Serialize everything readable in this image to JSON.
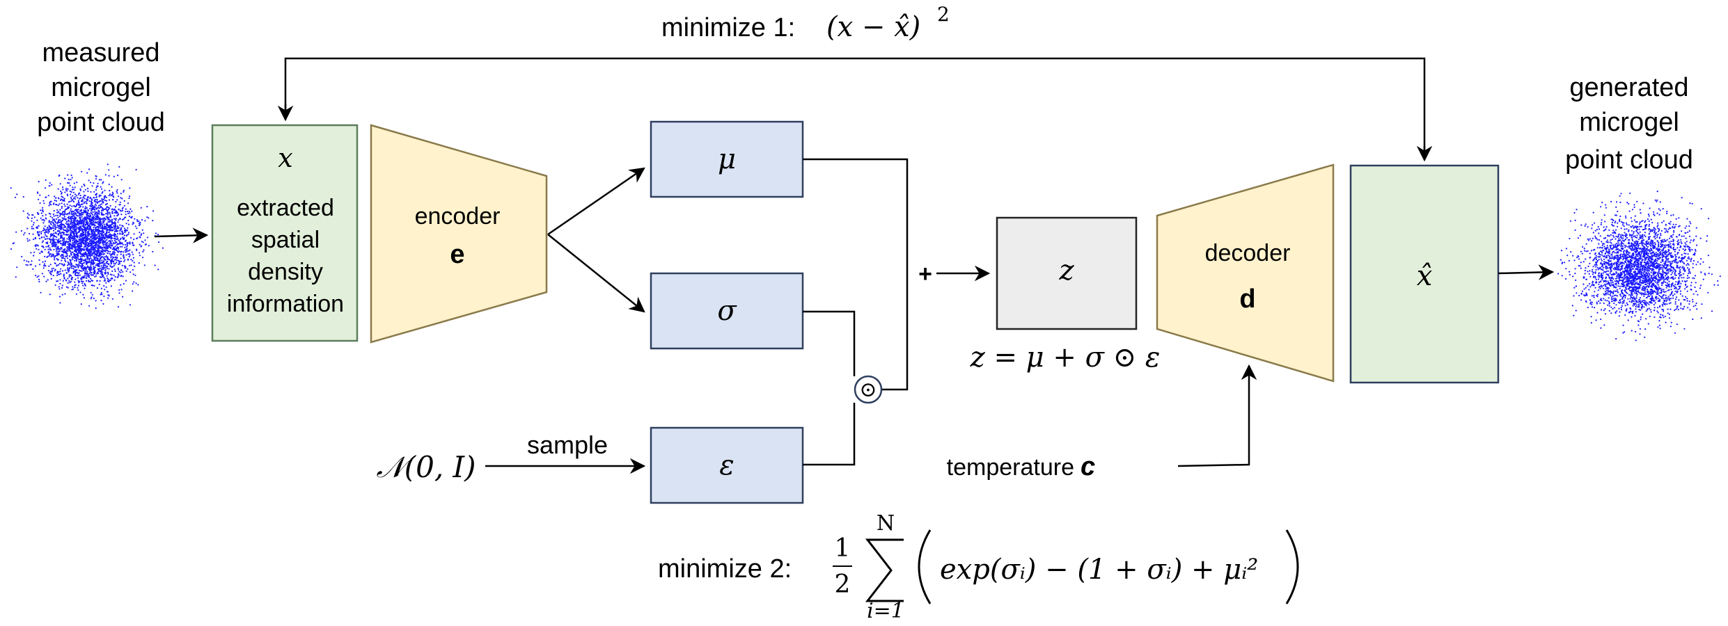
{
  "input": {
    "title_lines": [
      "measured",
      "microgel",
      "point cloud"
    ],
    "symbol": "x",
    "desc_lines": [
      "extracted",
      "spatial",
      "density",
      "information"
    ]
  },
  "encoder": {
    "label": "encoder",
    "symbol": "e"
  },
  "latent": {
    "mu": "μ",
    "sigma": "σ",
    "epsilon": "ε",
    "z": "z",
    "plus": "+",
    "odot": "⊙"
  },
  "prior": {
    "label": "𝒩(0, I)",
    "sample": "sample"
  },
  "reparam": {
    "formula": "z = μ + σ ⊙ ε"
  },
  "decoder": {
    "label": "decoder",
    "symbol": "d"
  },
  "condition": {
    "label": "temperature",
    "symbol": "c"
  },
  "output": {
    "symbol": "x̂",
    "title_lines": [
      "generated",
      "microgel",
      "point cloud"
    ]
  },
  "losses": {
    "loss1": {
      "label": "minimize 1:",
      "expr": "(x − x̂)",
      "exp": "2"
    },
    "loss2": {
      "label": "minimize 2:",
      "frac_num": "1",
      "frac_den": "2",
      "sum_top": "N",
      "sum_bottom": "i=1",
      "body": "exp(σᵢ) − (1 + σᵢ) + μᵢ²"
    }
  },
  "colors": {
    "green_fill": "#e2efda",
    "green_stroke": "#5b7d5b",
    "yellow_fill": "#fff2cc",
    "yellow_stroke": "#8a7a4a",
    "blue_fill": "#dae3f3",
    "blue_stroke": "#2f3f5f",
    "gray_fill": "#ededed",
    "points": "#1a1aff"
  }
}
